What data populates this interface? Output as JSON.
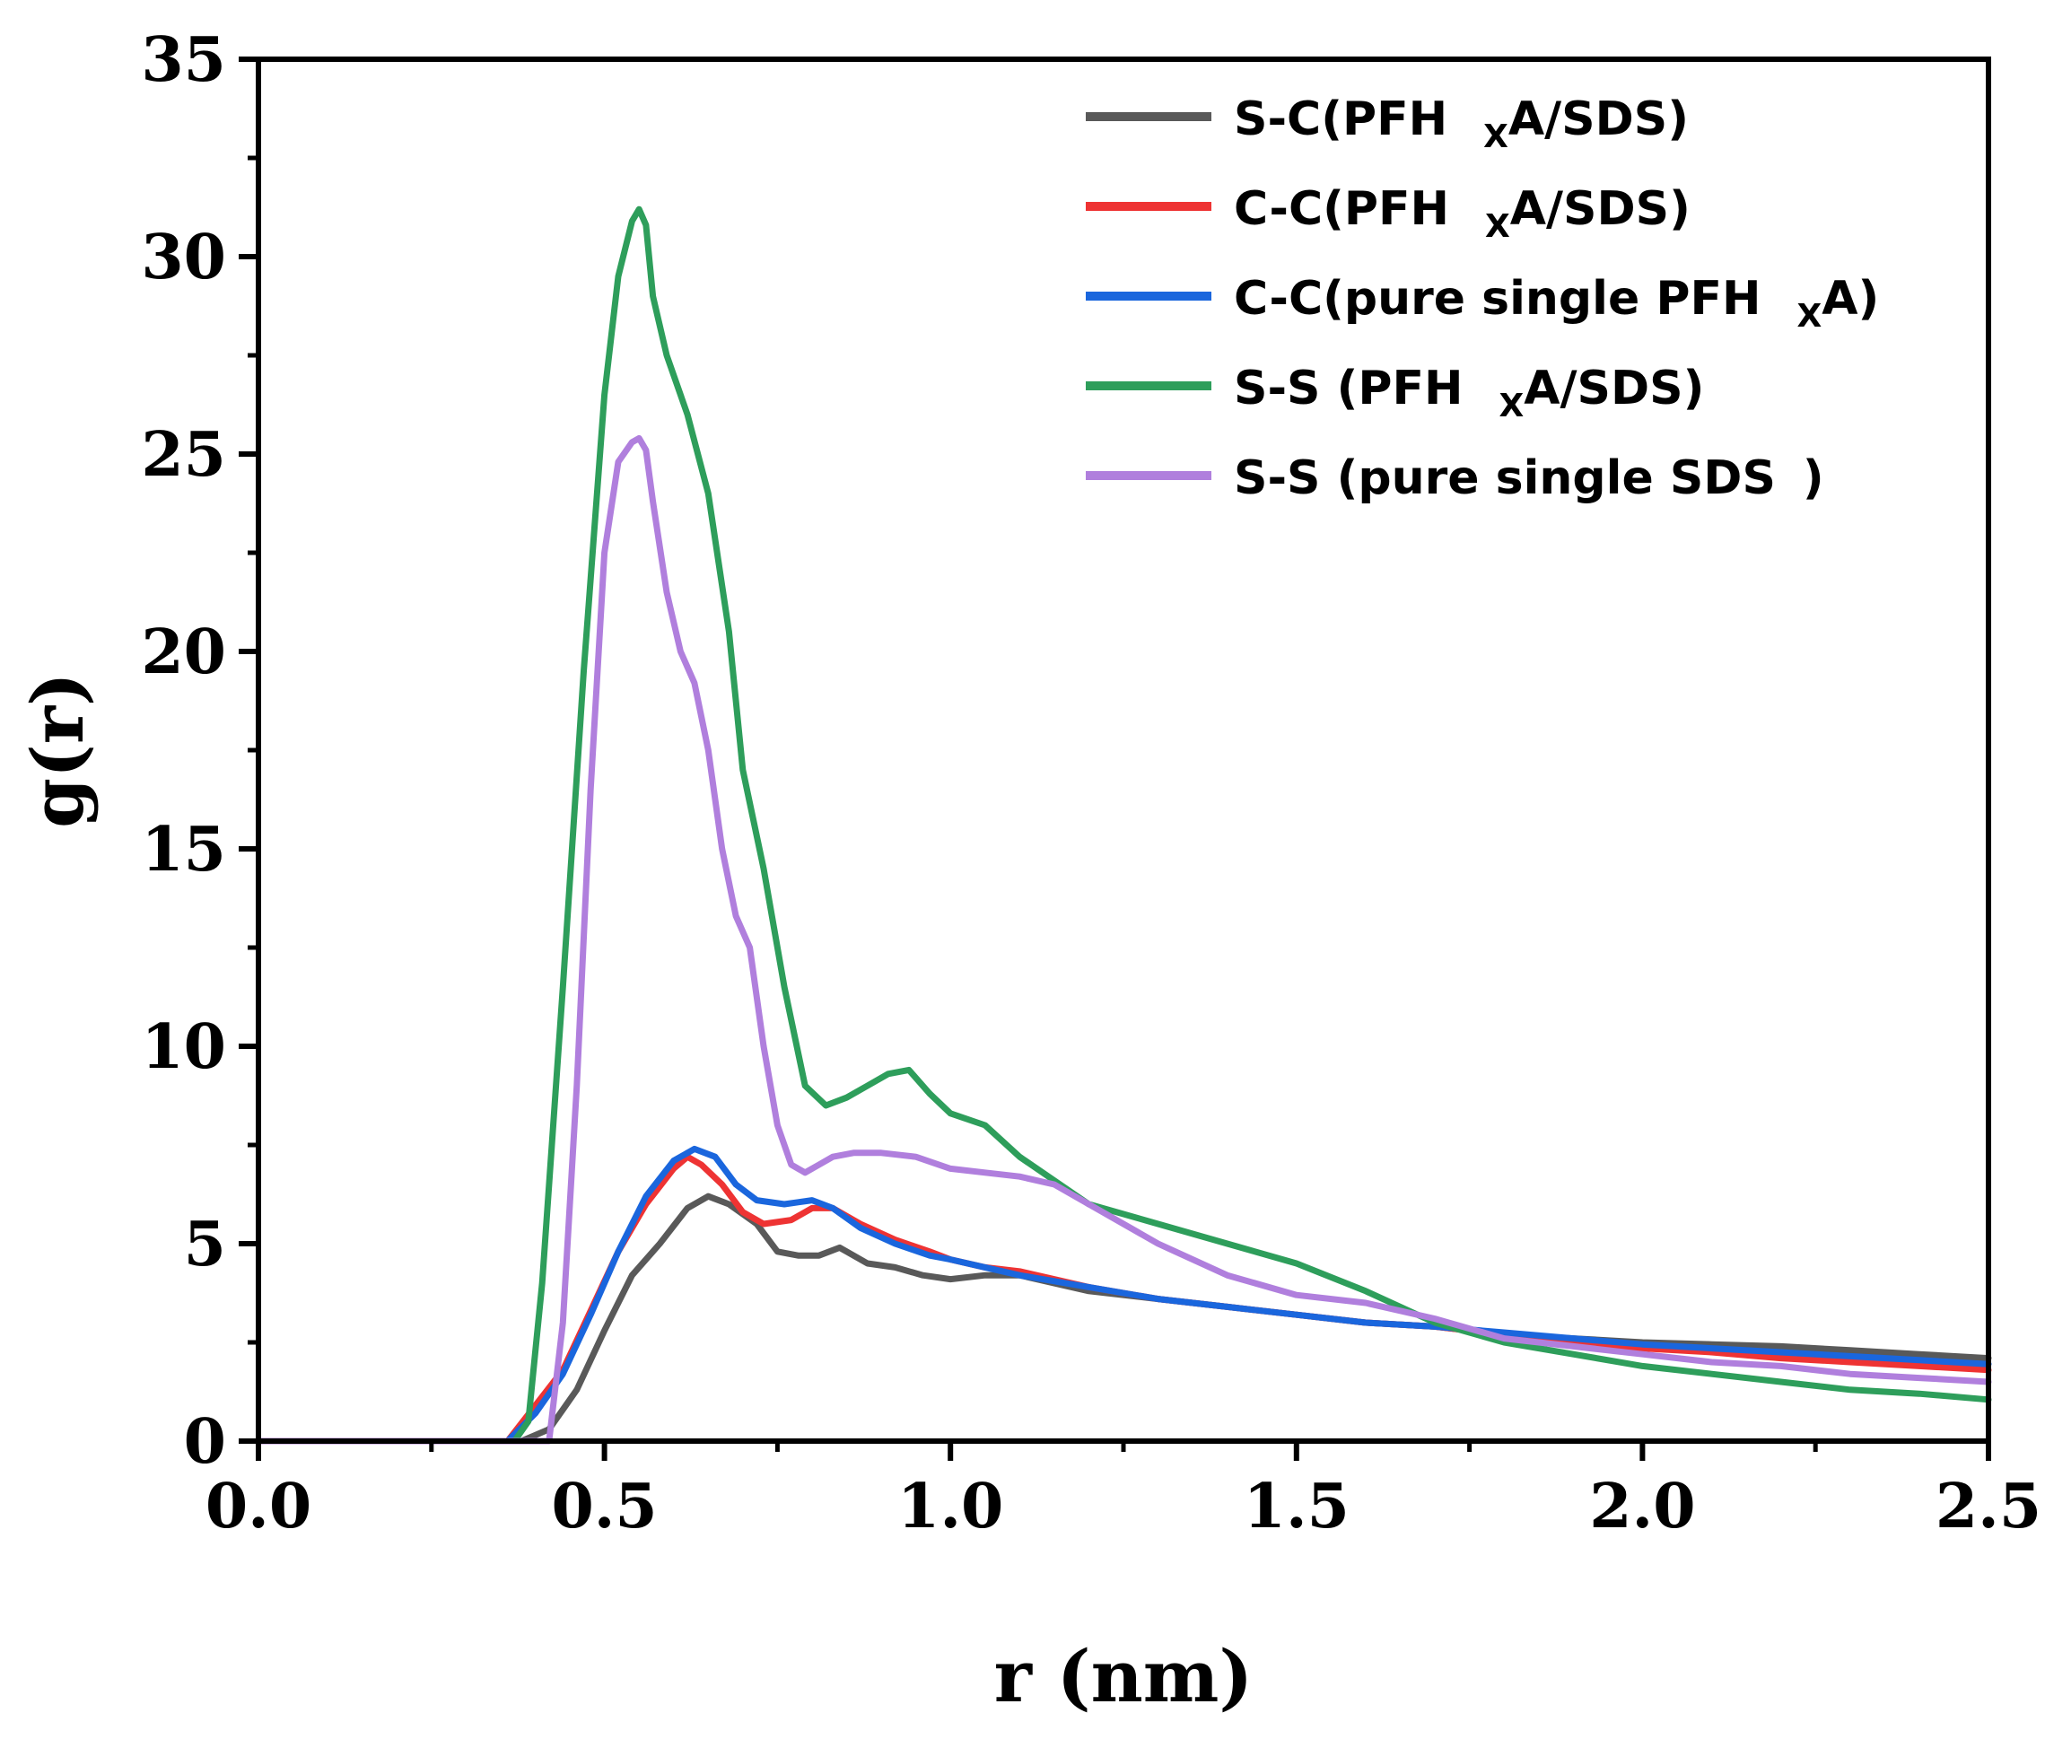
{
  "chart_data": {
    "type": "line",
    "title": "",
    "xlabel": "r (nm)",
    "ylabel": "g(r)",
    "xlim": [
      0,
      2.5
    ],
    "ylim": [
      0,
      35
    ],
    "xticks": [
      "0.0",
      "0.5",
      "1.0",
      "1.5",
      "2.0",
      "2.5"
    ],
    "yticks": [
      "0",
      "5",
      "10",
      "15",
      "20",
      "25",
      "30",
      "35"
    ],
    "legend_position": "top-right",
    "series": [
      {
        "name": "S-C(PFH xA/SDS)",
        "legend_main": "S-C(PFH",
        "legend_sub": "X",
        "legend_tail": "A/SDS)",
        "color": "#595959",
        "x": [
          0,
          0.3,
          0.38,
          0.42,
          0.46,
          0.5,
          0.54,
          0.58,
          0.62,
          0.65,
          0.68,
          0.72,
          0.75,
          0.78,
          0.81,
          0.84,
          0.88,
          0.92,
          0.96,
          1.0,
          1.05,
          1.1,
          1.2,
          1.3,
          1.4,
          1.5,
          1.6,
          1.7,
          1.8,
          1.9,
          2.0,
          2.1,
          2.2,
          2.3,
          2.4,
          2.5
        ],
        "y": [
          0,
          0,
          0,
          0.3,
          1.3,
          2.8,
          4.2,
          5.0,
          5.9,
          6.2,
          6.0,
          5.5,
          4.8,
          4.7,
          4.7,
          4.9,
          4.5,
          4.4,
          4.2,
          4.1,
          4.2,
          4.2,
          3.8,
          3.6,
          3.4,
          3.2,
          3.0,
          2.9,
          2.7,
          2.6,
          2.5,
          2.45,
          2.4,
          2.3,
          2.2,
          2.1
        ]
      },
      {
        "name": "C-C(PFH xA/SDS)",
        "legend_main": "C-C(PFH",
        "legend_sub": "X",
        "legend_tail": "A/SDS)",
        "color": "#ee3333",
        "x": [
          0,
          0.3,
          0.36,
          0.4,
          0.44,
          0.48,
          0.52,
          0.56,
          0.6,
          0.62,
          0.64,
          0.67,
          0.7,
          0.73,
          0.77,
          0.8,
          0.83,
          0.87,
          0.92,
          0.97,
          1.0,
          1.05,
          1.1,
          1.2,
          1.3,
          1.4,
          1.5,
          1.6,
          1.7,
          1.8,
          1.9,
          2.0,
          2.1,
          2.2,
          2.3,
          2.4,
          2.5
        ],
        "y": [
          0,
          0,
          0,
          0.9,
          1.8,
          3.3,
          4.8,
          6.0,
          6.9,
          7.2,
          7.0,
          6.5,
          5.8,
          5.5,
          5.6,
          5.9,
          5.9,
          5.5,
          5.1,
          4.8,
          4.6,
          4.4,
          4.3,
          3.9,
          3.6,
          3.4,
          3.2,
          3.0,
          2.9,
          2.7,
          2.5,
          2.35,
          2.25,
          2.1,
          2.0,
          1.9,
          1.8
        ]
      },
      {
        "name": "C-C(pure single PFH xA)",
        "legend_main": "C-C(pure single PFH",
        "legend_sub": "X",
        "legend_tail": "A)",
        "color": "#1a66dd",
        "x": [
          0,
          0.3,
          0.36,
          0.4,
          0.44,
          0.48,
          0.52,
          0.56,
          0.6,
          0.63,
          0.66,
          0.69,
          0.72,
          0.76,
          0.8,
          0.83,
          0.87,
          0.92,
          0.97,
          1.0,
          1.05,
          1.1,
          1.2,
          1.3,
          1.4,
          1.5,
          1.6,
          1.7,
          1.8,
          1.9,
          2.0,
          2.1,
          2.2,
          2.3,
          2.4,
          2.5
        ],
        "y": [
          0,
          0,
          0,
          0.7,
          1.7,
          3.2,
          4.8,
          6.2,
          7.1,
          7.4,
          7.2,
          6.5,
          6.1,
          6.0,
          6.1,
          5.9,
          5.4,
          5.0,
          4.7,
          4.6,
          4.4,
          4.2,
          3.9,
          3.6,
          3.4,
          3.2,
          3.0,
          2.9,
          2.75,
          2.6,
          2.45,
          2.35,
          2.25,
          2.15,
          2.05,
          1.95
        ]
      },
      {
        "name": "S-S (PFH xA/SDS)",
        "legend_main": "S-S (PFH",
        "legend_sub": "X",
        "legend_tail": "A/SDS)",
        "color": "#2e9e5b",
        "x": [
          0,
          0.3,
          0.37,
          0.39,
          0.41,
          0.44,
          0.47,
          0.5,
          0.52,
          0.54,
          0.55,
          0.56,
          0.57,
          0.59,
          0.62,
          0.65,
          0.68,
          0.7,
          0.73,
          0.76,
          0.79,
          0.82,
          0.85,
          0.88,
          0.91,
          0.94,
          0.97,
          1.0,
          1.05,
          1.1,
          1.15,
          1.2,
          1.3,
          1.4,
          1.5,
          1.6,
          1.7,
          1.8,
          1.9,
          2.0,
          2.1,
          2.2,
          2.3,
          2.4,
          2.5
        ],
        "y": [
          0,
          0,
          0,
          0.5,
          4.0,
          11.5,
          19.5,
          26.5,
          29.5,
          30.9,
          31.2,
          30.8,
          29.0,
          27.5,
          26.0,
          24.0,
          20.5,
          17.0,
          14.5,
          11.5,
          9.0,
          8.5,
          8.7,
          9.0,
          9.3,
          9.4,
          8.8,
          8.3,
          8.0,
          7.2,
          6.6,
          6.0,
          5.5,
          5.0,
          4.5,
          3.8,
          3.0,
          2.5,
          2.2,
          1.9,
          1.7,
          1.5,
          1.3,
          1.2,
          1.05
        ]
      },
      {
        "name": "S-S (pure single SDS)",
        "legend_main": "S-S (pure single SDS",
        "legend_sub": "",
        "legend_tail": ")",
        "color": "#b07fdd",
        "x": [
          0,
          0.3,
          0.42,
          0.44,
          0.46,
          0.48,
          0.5,
          0.52,
          0.54,
          0.55,
          0.56,
          0.57,
          0.59,
          0.61,
          0.63,
          0.65,
          0.67,
          0.69,
          0.71,
          0.73,
          0.75,
          0.77,
          0.79,
          0.81,
          0.83,
          0.86,
          0.9,
          0.95,
          1.0,
          1.05,
          1.1,
          1.15,
          1.2,
          1.3,
          1.4,
          1.5,
          1.6,
          1.7,
          1.8,
          1.9,
          2.0,
          2.1,
          2.2,
          2.3,
          2.4,
          2.5
        ],
        "y": [
          0,
          0,
          0,
          3.0,
          9.0,
          16.5,
          22.5,
          24.8,
          25.3,
          25.4,
          25.1,
          23.8,
          21.5,
          20.0,
          19.2,
          17.5,
          15.0,
          13.3,
          12.5,
          10.0,
          8.0,
          7.0,
          6.8,
          7.0,
          7.2,
          7.3,
          7.3,
          7.2,
          6.9,
          6.8,
          6.7,
          6.5,
          6.0,
          5.0,
          4.2,
          3.7,
          3.5,
          3.1,
          2.6,
          2.4,
          2.2,
          2.0,
          1.9,
          1.7,
          1.6,
          1.5
        ]
      }
    ]
  }
}
